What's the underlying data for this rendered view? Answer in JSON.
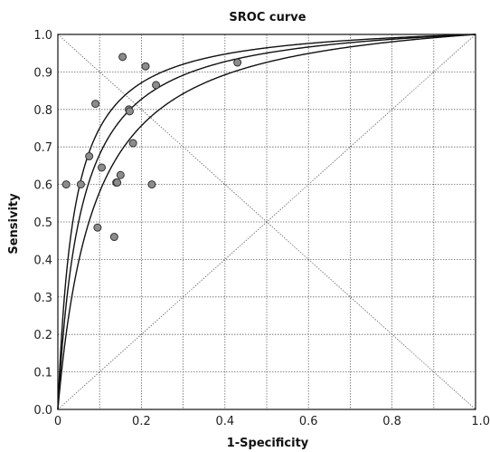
{
  "chart_data": {
    "type": "scatter",
    "title": "SROC curve",
    "xlabel": "1-Specificity",
    "ylabel": "Sensivity",
    "xlim": [
      0,
      1
    ],
    "ylim": [
      0,
      1
    ],
    "x_ticks": [
      "0",
      "0.2",
      "0.4",
      "0.6",
      "0.8",
      "1.0"
    ],
    "y_ticks": [
      "0.0",
      "0.1",
      "0.2",
      "0.3",
      "0.4",
      "0.5",
      "0.6",
      "0.7",
      "0.8",
      "0.9",
      "1.0"
    ],
    "grid": true,
    "reference_lines": [
      "diagonal y = x",
      "anti-diagonal y = 1 - x"
    ],
    "curves": [
      {
        "sensitivity_at_fpr_0.1": 0.75
      },
      {
        "sensitivity_at_fpr_0.1": 0.68
      },
      {
        "sensitivity_at_fpr_0.1": 0.58
      }
    ],
    "points": [
      {
        "x": 0.02,
        "y": 0.6
      },
      {
        "x": 0.055,
        "y": 0.6
      },
      {
        "x": 0.075,
        "y": 0.675
      },
      {
        "x": 0.09,
        "y": 0.815
      },
      {
        "x": 0.095,
        "y": 0.485
      },
      {
        "x": 0.105,
        "y": 0.645
      },
      {
        "x": 0.135,
        "y": 0.46
      },
      {
        "x": 0.14,
        "y": 0.605
      },
      {
        "x": 0.142,
        "y": 0.605
      },
      {
        "x": 0.15,
        "y": 0.625
      },
      {
        "x": 0.155,
        "y": 0.94
      },
      {
        "x": 0.17,
        "y": 0.8
      },
      {
        "x": 0.172,
        "y": 0.795
      },
      {
        "x": 0.18,
        "y": 0.71
      },
      {
        "x": 0.21,
        "y": 0.915
      },
      {
        "x": 0.225,
        "y": 0.6
      },
      {
        "x": 0.235,
        "y": 0.865
      },
      {
        "x": 0.43,
        "y": 0.925
      }
    ],
    "colors": {
      "point_fill": "#8c8c8c",
      "point_stroke": "#333333",
      "curve": "#111111",
      "grid": "#666666",
      "axes": "#111111"
    }
  }
}
